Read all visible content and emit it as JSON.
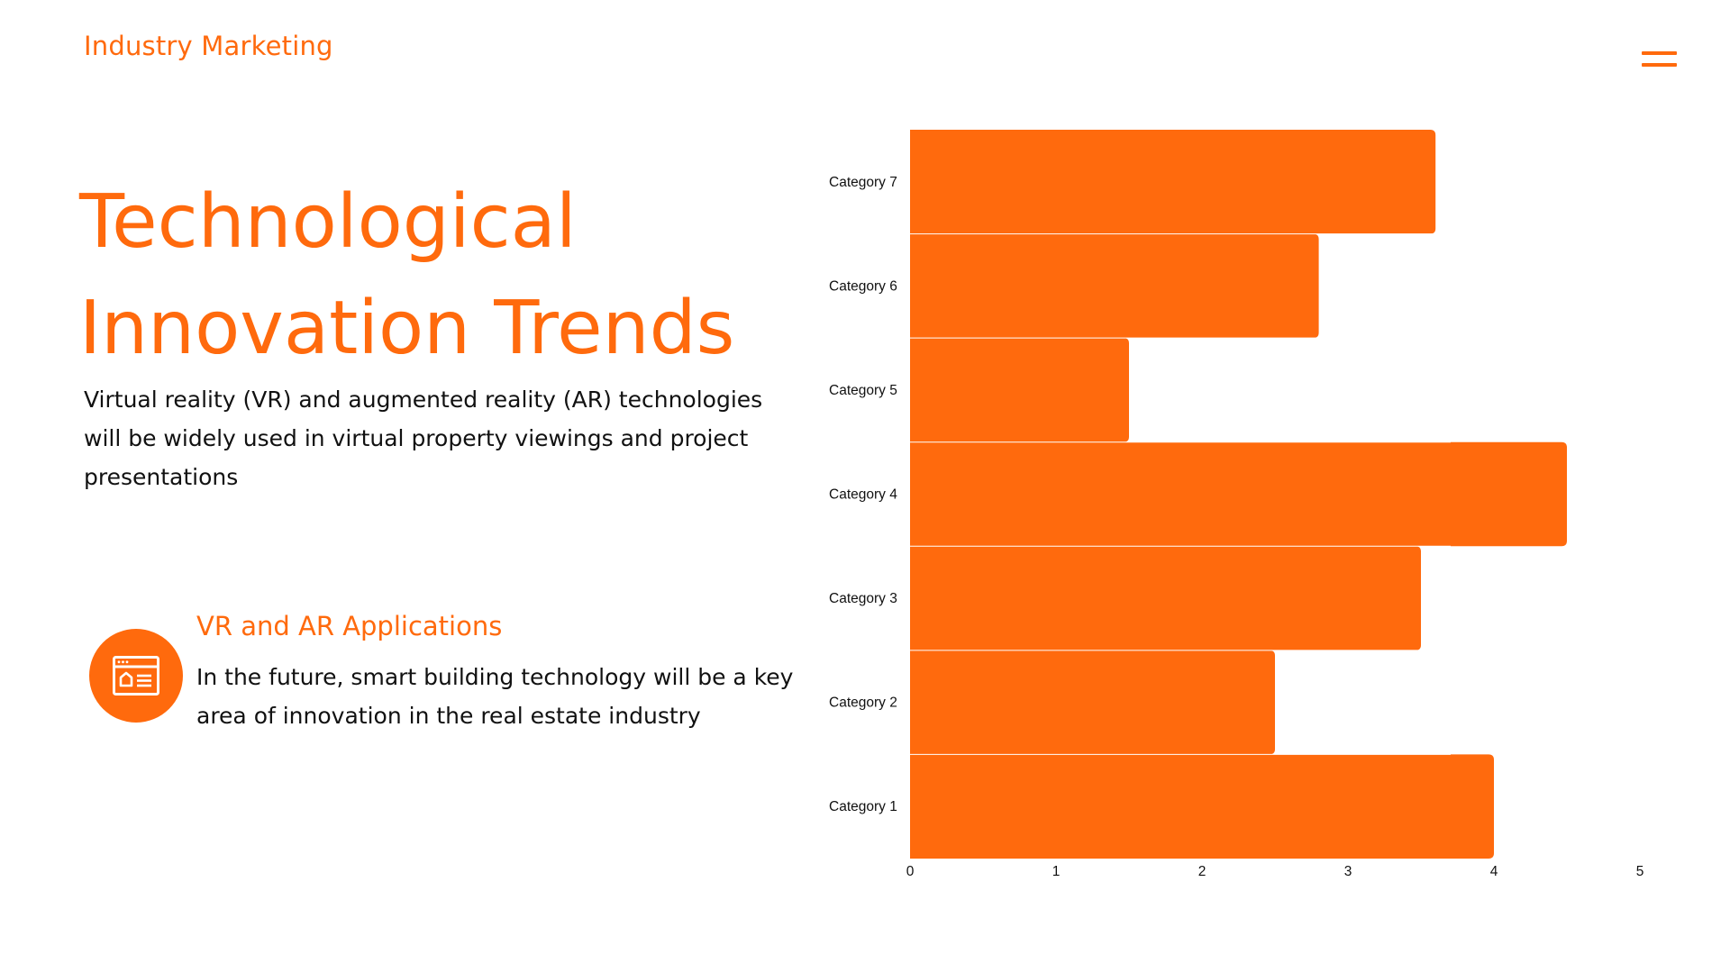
{
  "header": {
    "brand": "Industry Marketing",
    "menu_icon": "hamburger-menu-icon"
  },
  "title": {
    "line1": "Technological",
    "line2": "Innovation Trends"
  },
  "description": "Virtual reality (VR) and augmented reality (AR) technologies will be widely used in virtual property viewings and project presentations",
  "feature": {
    "icon": "browser-window-home-icon",
    "title": "VR and AR Applications",
    "text": "In the future, smart building technology will be a key area of innovation in the real estate industry"
  },
  "colors": {
    "accent": "#ff6a0d",
    "text": "#111111"
  },
  "chart_data": {
    "type": "bar",
    "orientation": "horizontal",
    "categories": [
      "Category 1",
      "Category 2",
      "Category 3",
      "Category 4",
      "Category 5",
      "Category 6",
      "Category 7"
    ],
    "values": [
      4.0,
      2.5,
      3.5,
      4.5,
      1.5,
      2.8,
      3.6
    ],
    "xlim": [
      0,
      5
    ],
    "xticks": [
      0,
      1,
      2,
      3,
      4,
      5
    ],
    "title": "",
    "xlabel": "",
    "ylabel": "",
    "grid": false,
    "legend": "none",
    "color": "#ff6a0d"
  }
}
